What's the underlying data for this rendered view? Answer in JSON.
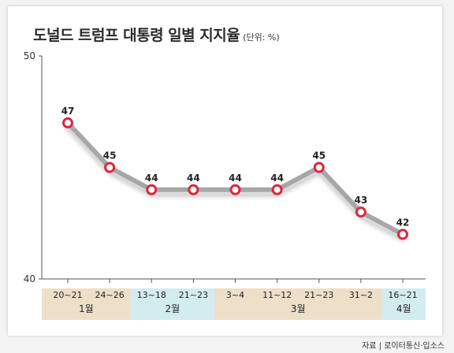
{
  "title": "도널드 트럼프 대통령 일별 지지율",
  "unit": "(단위: %)",
  "source": "자료 | 로이터통신·입소스",
  "colors": {
    "line": "#a7a7a7",
    "marker": "#d8283e",
    "month_bg_tan": "#eedfc9",
    "month_bg_blue": "#d3ecf0",
    "axis": "#555555"
  },
  "chart_data": {
    "type": "line",
    "title": "도널드 트럼프 대통령 일별 지지율",
    "xlabel": "",
    "ylabel": "",
    "ylim": [
      40,
      50
    ],
    "yticks": [
      40,
      50
    ],
    "grid": false,
    "categories": [
      "20~21",
      "24~26",
      "13~18",
      "21~23",
      "3~4",
      "11~12",
      "21~23",
      "31~2",
      "16~21"
    ],
    "values": [
      47,
      45,
      44,
      44,
      44,
      44,
      45,
      43,
      42
    ],
    "data_labels": [
      "47",
      "45",
      "44",
      "44",
      "44",
      "44",
      "45",
      "43",
      "42"
    ],
    "months": [
      {
        "label": "1월",
        "from": 0,
        "to": 1,
        "color": "tan"
      },
      {
        "label": "2월",
        "from": 2,
        "to": 3,
        "color": "blue"
      },
      {
        "label": "3월",
        "from": 4,
        "to": 7,
        "color": "tan"
      },
      {
        "label": "4월",
        "from": 8,
        "to": 8,
        "color": "blue"
      }
    ]
  }
}
